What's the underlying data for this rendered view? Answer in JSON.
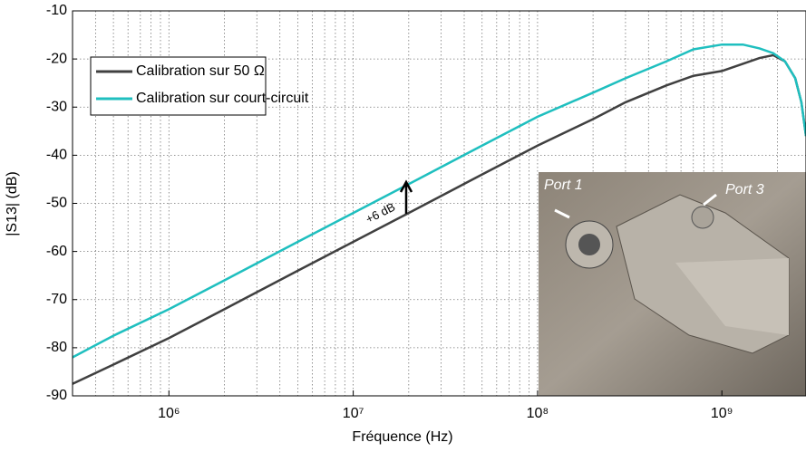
{
  "chart_data": {
    "type": "line",
    "xlabel": "Fréquence (Hz)",
    "ylabel": "|S13| (dB)",
    "x": [
      300000,
      500000,
      1000000,
      2000000,
      5000000,
      10000000,
      20000000,
      50000000,
      100000000,
      200000000,
      300000000,
      500000000,
      700000000,
      1000000000,
      1300000000,
      1600000000,
      1900000000,
      2200000000,
      2500000000,
      2700000000,
      2860000000
    ],
    "series": [
      {
        "name": "Calibration sur 50 Ω",
        "color": "#404040",
        "values": [
          -87.5,
          -83.5,
          -78,
          -72,
          -64,
          -58,
          -52,
          -44,
          -38,
          -32.5,
          -29,
          -25.5,
          -23.5,
          -22.5,
          -21,
          -19.8,
          -19.2,
          -20.5,
          -24,
          -29,
          -36
        ]
      },
      {
        "name": "Calibration sur court-circuit",
        "color": "#1fbfbf",
        "values": [
          -82,
          -77.5,
          -72,
          -66,
          -58,
          -52,
          -46,
          -38,
          -32,
          -27,
          -24,
          -20.5,
          -18,
          -17,
          -17,
          -17.8,
          -18.8,
          -20.5,
          -24,
          -29,
          -36
        ]
      }
    ],
    "xscale": "log",
    "xlim": [
      300000,
      2860000000
    ],
    "xticks": [
      {
        "value": 1000000,
        "label": "10⁶"
      },
      {
        "value": 10000000,
        "label": "10⁷"
      },
      {
        "value": 100000000,
        "label": "10⁸"
      },
      {
        "value": 1000000000,
        "label": "10⁹"
      }
    ],
    "xminorticks": [
      400000,
      500000,
      600000,
      700000,
      800000,
      900000,
      2000000,
      3000000,
      4000000,
      5000000,
      6000000,
      7000000,
      8000000,
      9000000,
      20000000,
      30000000,
      40000000,
      50000000,
      60000000,
      70000000,
      80000000,
      90000000,
      200000000,
      300000000,
      400000000,
      500000000,
      600000000,
      700000000,
      800000000,
      900000000,
      2000000000
    ],
    "ylim": [
      -90,
      -10
    ],
    "yticks": [
      -90,
      -80,
      -70,
      -60,
      -50,
      -40,
      -30,
      -20,
      -10
    ],
    "grid": true,
    "legend": "upper left",
    "annotation": "+6 dB",
    "photo_labels": [
      "Port 1",
      "Port 3"
    ]
  }
}
